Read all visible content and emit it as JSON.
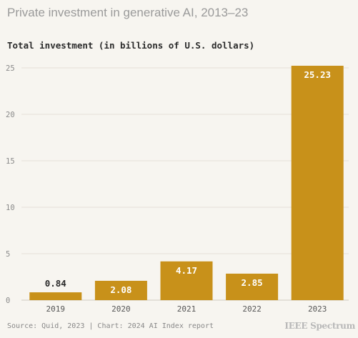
{
  "chart_data": {
    "type": "bar",
    "title": "Private investment in generative AI, 2013–23",
    "subtitle": "Total investment (in billions of U.S. dollars)",
    "categories": [
      "2019",
      "2020",
      "2021",
      "2022",
      "2023"
    ],
    "values": [
      0.84,
      2.08,
      4.17,
      2.85,
      25.23
    ],
    "value_labels": [
      "0.84",
      "2.08",
      "4.17",
      "2.85",
      "25.23"
    ],
    "ylim": [
      0,
      25
    ],
    "yticks": [
      0,
      5,
      10,
      15,
      20,
      25
    ],
    "grid": true,
    "bar_color": "#c8911a",
    "source": "Source: Quid, 2023 | Chart: 2024 AI Index report",
    "logo": "IEEE Spectrum"
  }
}
